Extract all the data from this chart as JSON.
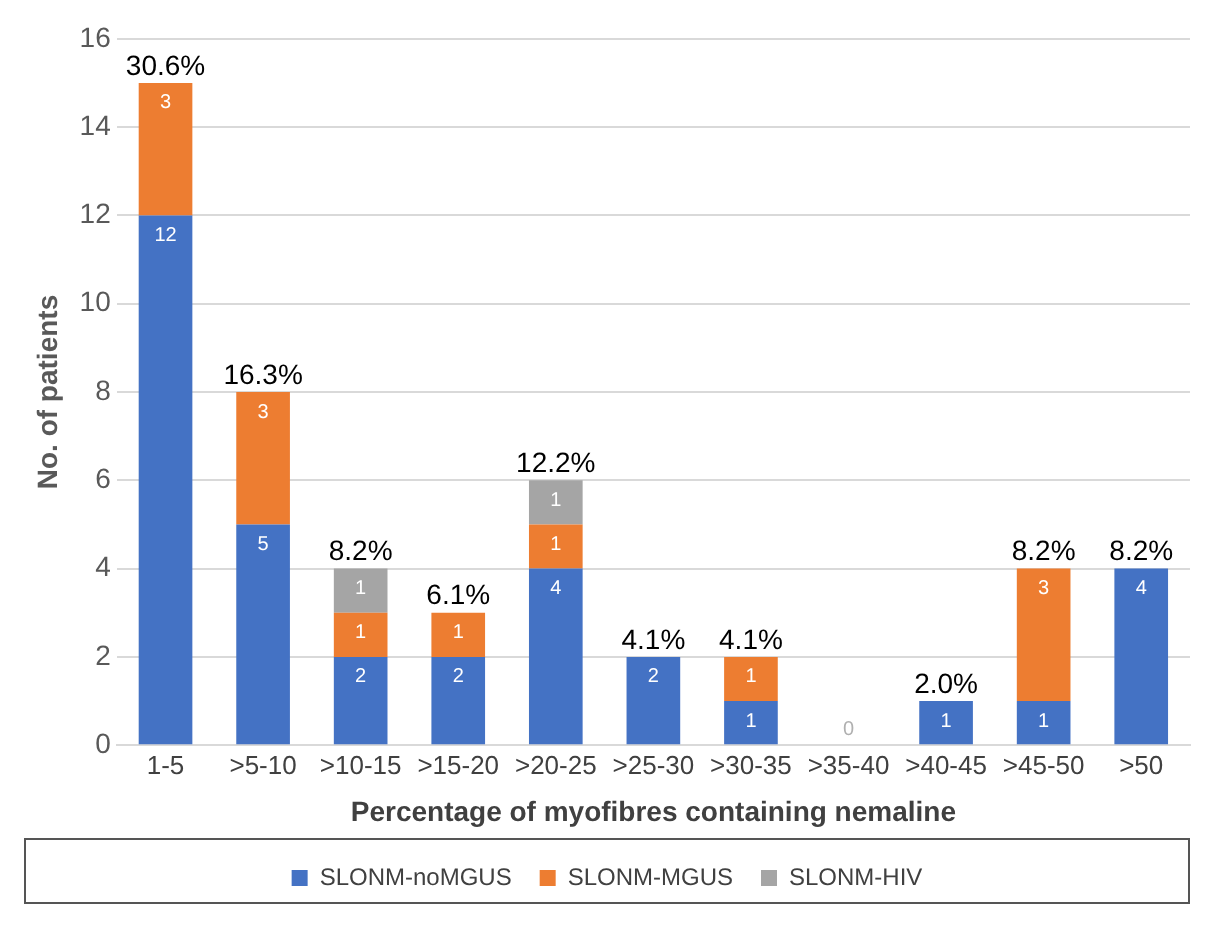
{
  "chart_data": {
    "type": "bar",
    "stacked": true,
    "xlabel": "Percentage of myofibres containing nemaline",
    "ylabel": "No. of patients",
    "categories": [
      "1-5",
      ">5-10",
      ">10-15",
      ">15-20",
      ">20-25",
      ">25-30",
      ">30-35",
      ">35-40",
      ">40-45",
      ">45-50",
      ">50"
    ],
    "series": [
      {
        "name": "SLONM-noMGUS",
        "color": "#4472c4",
        "values": [
          12,
          5,
          2,
          2,
          4,
          2,
          1,
          0,
          1,
          1,
          4
        ]
      },
      {
        "name": "SLONM-MGUS",
        "color": "#ed7d31",
        "values": [
          3,
          3,
          1,
          1,
          1,
          null,
          1,
          null,
          null,
          3,
          null
        ]
      },
      {
        "name": "SLONM-HIV",
        "color": "#a5a5a5",
        "values": [
          null,
          null,
          1,
          null,
          1,
          null,
          null,
          null,
          null,
          null,
          null
        ]
      }
    ],
    "annotations": [
      {
        "text": "30.6%",
        "x": "1-5",
        "y": 15
      },
      {
        "text": "16.3%",
        "x": ">5-10",
        "y": 8
      },
      {
        "text": "8.2%",
        "x": ">10-15",
        "y": 4
      },
      {
        "text": "6.1%",
        "x": ">15-20",
        "y": 3
      },
      {
        "text": "12.2%",
        "x": ">20-25",
        "y": 6
      },
      {
        "text": "4.1%",
        "x": ">25-30",
        "y": 2
      },
      {
        "text": "4.1%",
        "x": ">30-35",
        "y": 2
      },
      {
        "text": "2.0%",
        "x": ">40-45",
        "y": 1
      },
      {
        "text": "8.2%",
        "x": ">45-50",
        "y": 4
      },
      {
        "text": "8.2%",
        "x": ">50",
        "y": 4
      }
    ],
    "data_labels": true,
    "ylim": [
      0,
      16
    ],
    "yticks": [
      0,
      2,
      4,
      6,
      8,
      10,
      12,
      14,
      16
    ],
    "grid": "y",
    "legend": "bottom"
  }
}
